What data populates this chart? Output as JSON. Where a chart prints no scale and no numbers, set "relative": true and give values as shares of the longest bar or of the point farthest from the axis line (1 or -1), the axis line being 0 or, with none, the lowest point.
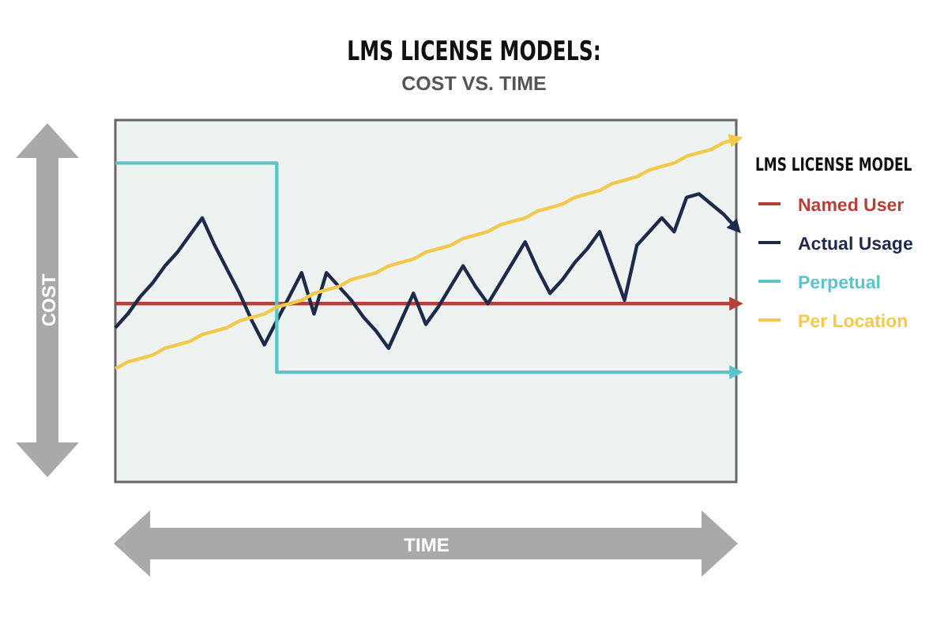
{
  "chart_data": {
    "type": "line",
    "title": "LMS LICENSE MODELS:",
    "subtitle": "COST VS. TIME",
    "xlabel": "TIME",
    "ylabel": "COST",
    "legend_title": "LMS LICENSE MODEL",
    "legend": "right",
    "relative": true,
    "categories": [
      null,
      null,
      null,
      null,
      null,
      null,
      null,
      null,
      null,
      null,
      null,
      null,
      null,
      null,
      null,
      null,
      null,
      null,
      null,
      null,
      null,
      null,
      null,
      null,
      null,
      null,
      null,
      null,
      null,
      null,
      null,
      null,
      null,
      null,
      null,
      null,
      null,
      null,
      null,
      null,
      null,
      null,
      null,
      null,
      null,
      null,
      null,
      null,
      null,
      null,
      null
    ],
    "series": [
      {
        "name": "Named User",
        "color": "#b5403a",
        "values": [
          0.52,
          0.52,
          0.52,
          0.52,
          0.52,
          0.52,
          0.52,
          0.52,
          0.52,
          0.52,
          0.52,
          0.52,
          0.52,
          0.52,
          0.52,
          0.52,
          0.52,
          0.52,
          0.52,
          0.52,
          0.52,
          0.52,
          0.52,
          0.52,
          0.52,
          0.52,
          0.52,
          0.52,
          0.52,
          0.52,
          0.52,
          0.52,
          0.52,
          0.52,
          0.52,
          0.52,
          0.52,
          0.52,
          0.52,
          0.52,
          0.52,
          0.52,
          0.52,
          0.52,
          0.52,
          0.52,
          0.52,
          0.52,
          0.52,
          0.52,
          0.52
        ]
      },
      {
        "name": "Actual Usage",
        "color": "#1d2a4a",
        "values": [
          0.45,
          0.49,
          0.54,
          0.58,
          0.63,
          0.67,
          0.72,
          0.77,
          0.69,
          0.62,
          0.55,
          0.47,
          0.4,
          0.47,
          0.54,
          0.61,
          0.49,
          0.61,
          0.57,
          0.53,
          0.48,
          0.44,
          0.39,
          0.47,
          0.55,
          0.46,
          0.51,
          0.57,
          0.63,
          0.57,
          0.52,
          0.58,
          0.64,
          0.7,
          0.62,
          0.55,
          0.59,
          0.64,
          0.68,
          0.73,
          0.63,
          0.53,
          0.69,
          0.73,
          0.77,
          0.73,
          0.83,
          0.84,
          0.81,
          0.78,
          0.74
        ]
      },
      {
        "name": "Perpetual",
        "type": "step",
        "color": "#5bc4c9",
        "values": [
          0.93,
          0.93,
          0.93,
          0.93,
          0.93,
          0.93,
          0.93,
          0.93,
          0.93,
          0.93,
          0.93,
          0.93,
          0.93,
          0.32,
          0.32,
          0.32,
          0.32,
          0.32,
          0.32,
          0.32,
          0.32,
          0.32,
          0.32,
          0.32,
          0.32,
          0.32,
          0.32,
          0.32,
          0.32,
          0.32,
          0.32,
          0.32,
          0.32,
          0.32,
          0.32,
          0.32,
          0.32,
          0.32,
          0.32,
          0.32,
          0.32,
          0.32,
          0.32,
          0.32,
          0.32,
          0.32,
          0.32,
          0.32,
          0.32,
          0.32,
          0.32
        ]
      },
      {
        "name": "Per Location",
        "color": "#f2c94c",
        "values": [
          0.33,
          0.35,
          0.36,
          0.37,
          0.39,
          0.4,
          0.41,
          0.43,
          0.44,
          0.45,
          0.47,
          0.48,
          0.49,
          0.51,
          0.52,
          0.53,
          0.55,
          0.56,
          0.57,
          0.59,
          0.6,
          0.61,
          0.63,
          0.64,
          0.65,
          0.67,
          0.68,
          0.69,
          0.71,
          0.72,
          0.73,
          0.75,
          0.76,
          0.77,
          0.79,
          0.8,
          0.81,
          0.83,
          0.84,
          0.85,
          0.87,
          0.88,
          0.89,
          0.91,
          0.92,
          0.93,
          0.95,
          0.96,
          0.97,
          0.99,
          1.0
        ]
      }
    ]
  }
}
